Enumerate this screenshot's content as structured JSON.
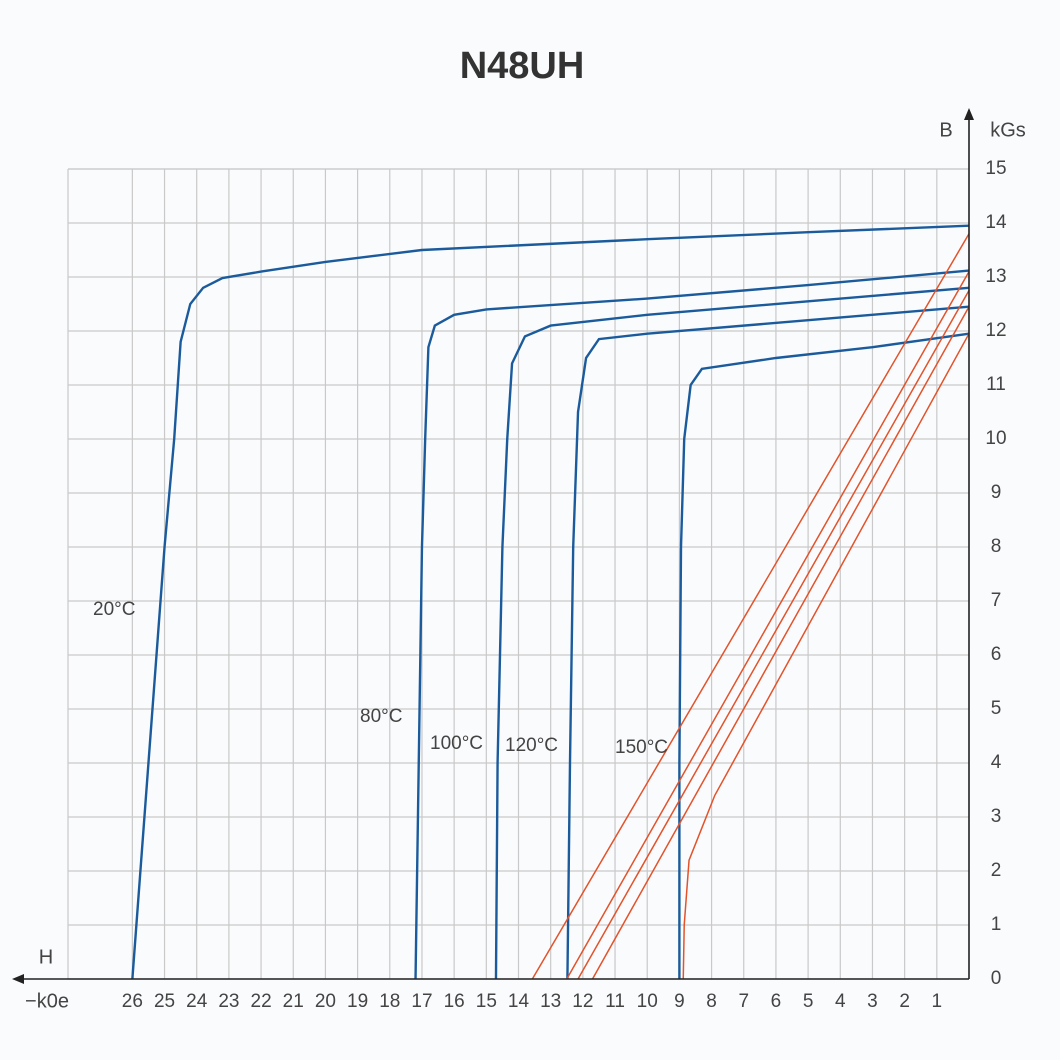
{
  "chart_data": {
    "type": "line",
    "title": "N48UH",
    "y_label": "B",
    "y_unit": "kGs",
    "x_label": "H",
    "x_unit": "−k0e",
    "xlim": [
      0,
      28
    ],
    "ylim": [
      0,
      15
    ],
    "x_reversed": true,
    "xticks": [
      1,
      2,
      3,
      4,
      5,
      6,
      7,
      8,
      9,
      10,
      11,
      12,
      13,
      14,
      15,
      16,
      17,
      18,
      19,
      20,
      21,
      22,
      23,
      24,
      25,
      26
    ],
    "yticks": [
      0,
      1,
      2,
      3,
      4,
      5,
      6,
      7,
      8,
      9,
      10,
      11,
      12,
      13,
      14,
      15
    ],
    "grid": true,
    "series": [
      {
        "name": "20°C",
        "color": "#1b5b9c",
        "x": [
          0,
          5,
          10,
          17,
          20,
          22,
          23.2,
          23.8,
          24.2,
          24.5,
          24.7,
          25,
          25.5,
          26
        ],
        "values": [
          13.95,
          13.83,
          13.7,
          13.5,
          13.28,
          13.1,
          12.98,
          12.8,
          12.5,
          11.8,
          10,
          8,
          4,
          0
        ]
      },
      {
        "name": "80°C",
        "color": "#1b5b9c",
        "x": [
          0,
          5,
          10,
          15,
          16,
          16.6,
          16.8,
          16.9,
          17,
          17.1,
          17.2
        ],
        "values": [
          13.12,
          12.85,
          12.6,
          12.4,
          12.3,
          12.1,
          11.7,
          10,
          8,
          4,
          0
        ]
      },
      {
        "name": "100°C",
        "color": "#1b5b9c",
        "x": [
          0,
          5,
          10,
          13,
          13.8,
          14.2,
          14.35,
          14.5,
          14.65,
          14.7
        ],
        "values": [
          12.8,
          12.55,
          12.3,
          12.1,
          11.9,
          11.4,
          10,
          8,
          4,
          0
        ]
      },
      {
        "name": "120°C",
        "color": "#1b5b9c",
        "x": [
          0,
          5,
          10,
          11.5,
          11.9,
          12.15,
          12.3,
          12.4,
          12.48
        ],
        "values": [
          12.45,
          12.2,
          11.95,
          11.85,
          11.5,
          10.5,
          8,
          4,
          0
        ]
      },
      {
        "name": "150°C",
        "color": "#1b5b9c",
        "x": [
          0,
          3,
          6,
          8.3,
          8.65,
          8.85,
          8.95,
          9,
          9
        ],
        "values": [
          11.95,
          11.7,
          11.5,
          11.3,
          11,
          10,
          8,
          4,
          0
        ]
      },
      {
        "color": "#e2532b",
        "x": [
          13.57,
          0
        ],
        "values": [
          0,
          13.8
        ]
      },
      {
        "color": "#e2532b",
        "x": [
          12.5,
          0
        ],
        "values": [
          0,
          13.1
        ]
      },
      {
        "color": "#e2532b",
        "x": [
          12.15,
          0
        ],
        "values": [
          0,
          12.75
        ]
      },
      {
        "color": "#e2532b",
        "x": [
          11.7,
          0
        ],
        "values": [
          0,
          12.45
        ]
      },
      {
        "color": "#e2532b",
        "x": [
          8.88,
          8.85,
          8.7,
          8.3,
          7.9,
          0
        ],
        "values": [
          0,
          1,
          2.2,
          2.8,
          3.4,
          11.95
        ]
      }
    ]
  }
}
